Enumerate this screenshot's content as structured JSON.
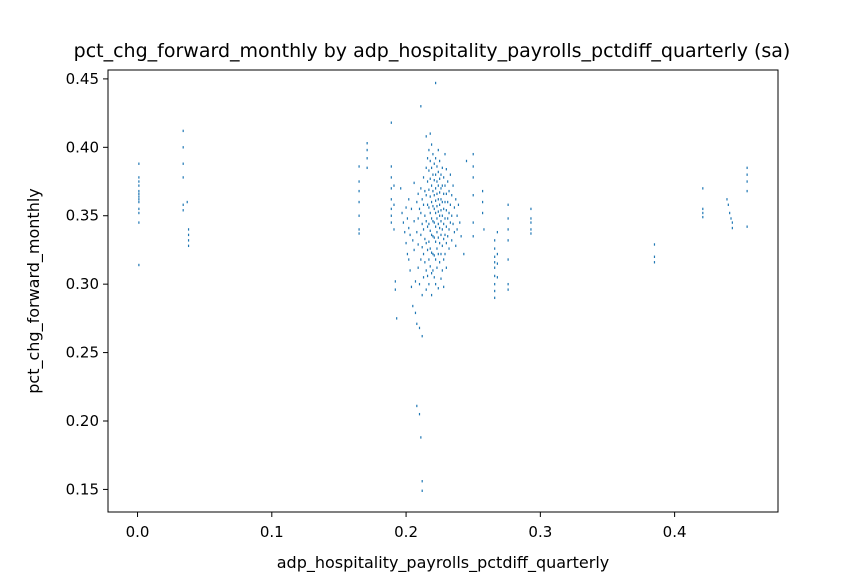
{
  "chart_data": {
    "type": "scatter",
    "title": "pct_chg_forward_monthly by adp_hospitality_payrolls_pctdiff_quarterly (sa)",
    "xlabel": "adp_hospitality_payrolls_pctdiff_quarterly",
    "ylabel": "pct_chg_forward_monthly",
    "xlim": [
      -0.022,
      0.477
    ],
    "ylim": [
      0.1335,
      0.4565
    ],
    "xticks": [
      0.0,
      0.1,
      0.2,
      0.3,
      0.4
    ],
    "xtick_labels": [
      "0.0",
      "0.1",
      "0.2",
      "0.3",
      "0.4"
    ],
    "yticks": [
      0.15,
      0.2,
      0.25,
      0.3,
      0.35,
      0.4,
      0.45
    ],
    "ytick_labels": [
      "0.15",
      "0.20",
      "0.25",
      "0.30",
      "0.35",
      "0.40",
      "0.45"
    ],
    "grid": false,
    "marker_color": "#1f77b4",
    "points": [
      [
        0.001,
        0.388
      ],
      [
        0.001,
        0.378
      ],
      [
        0.001,
        0.375
      ],
      [
        0.001,
        0.372
      ],
      [
        0.001,
        0.368
      ],
      [
        0.001,
        0.366
      ],
      [
        0.001,
        0.364
      ],
      [
        0.001,
        0.362
      ],
      [
        0.001,
        0.36
      ],
      [
        0.001,
        0.355
      ],
      [
        0.001,
        0.352
      ],
      [
        0.001,
        0.345
      ],
      [
        0.001,
        0.314
      ],
      [
        0.034,
        0.412
      ],
      [
        0.034,
        0.4
      ],
      [
        0.034,
        0.388
      ],
      [
        0.034,
        0.378
      ],
      [
        0.034,
        0.358
      ],
      [
        0.034,
        0.354
      ],
      [
        0.037,
        0.36
      ],
      [
        0.038,
        0.34
      ],
      [
        0.038,
        0.336
      ],
      [
        0.038,
        0.332
      ],
      [
        0.038,
        0.328
      ],
      [
        0.165,
        0.386
      ],
      [
        0.165,
        0.375
      ],
      [
        0.165,
        0.368
      ],
      [
        0.165,
        0.36
      ],
      [
        0.165,
        0.35
      ],
      [
        0.165,
        0.34
      ],
      [
        0.165,
        0.337
      ],
      [
        0.171,
        0.403
      ],
      [
        0.171,
        0.398
      ],
      [
        0.171,
        0.392
      ],
      [
        0.171,
        0.385
      ],
      [
        0.189,
        0.418
      ],
      [
        0.189,
        0.386
      ],
      [
        0.189,
        0.378
      ],
      [
        0.189,
        0.37
      ],
      [
        0.189,
        0.362
      ],
      [
        0.189,
        0.355
      ],
      [
        0.189,
        0.35
      ],
      [
        0.189,
        0.345
      ],
      [
        0.191,
        0.372
      ],
      [
        0.191,
        0.358
      ],
      [
        0.191,
        0.34
      ],
      [
        0.192,
        0.302
      ],
      [
        0.192,
        0.296
      ],
      [
        0.193,
        0.275
      ],
      [
        0.196,
        0.37
      ],
      [
        0.197,
        0.352
      ],
      [
        0.198,
        0.345
      ],
      [
        0.199,
        0.338
      ],
      [
        0.2,
        0.356
      ],
      [
        0.2,
        0.33
      ],
      [
        0.201,
        0.348
      ],
      [
        0.201,
        0.322
      ],
      [
        0.202,
        0.362
      ],
      [
        0.202,
        0.341
      ],
      [
        0.202,
        0.318
      ],
      [
        0.203,
        0.336
      ],
      [
        0.203,
        0.31
      ],
      [
        0.204,
        0.355
      ],
      [
        0.204,
        0.298
      ],
      [
        0.205,
        0.332
      ],
      [
        0.205,
        0.284
      ],
      [
        0.206,
        0.374
      ],
      [
        0.206,
        0.346
      ],
      [
        0.206,
        0.325
      ],
      [
        0.207,
        0.302
      ],
      [
        0.207,
        0.279
      ],
      [
        0.208,
        0.36
      ],
      [
        0.208,
        0.338
      ],
      [
        0.208,
        0.271
      ],
      [
        0.208,
        0.211
      ],
      [
        0.209,
        0.366
      ],
      [
        0.209,
        0.348
      ],
      [
        0.209,
        0.329
      ],
      [
        0.209,
        0.312
      ],
      [
        0.21,
        0.355
      ],
      [
        0.21,
        0.3
      ],
      [
        0.21,
        0.268
      ],
      [
        0.21,
        0.205
      ],
      [
        0.211,
        0.43
      ],
      [
        0.211,
        0.37
      ],
      [
        0.211,
        0.352
      ],
      [
        0.211,
        0.336
      ],
      [
        0.211,
        0.318
      ],
      [
        0.211,
        0.188
      ],
      [
        0.212,
        0.362
      ],
      [
        0.212,
        0.344
      ],
      [
        0.212,
        0.327
      ],
      [
        0.212,
        0.292
      ],
      [
        0.212,
        0.262
      ],
      [
        0.212,
        0.156
      ],
      [
        0.212,
        0.149
      ],
      [
        0.213,
        0.378
      ],
      [
        0.213,
        0.358
      ],
      [
        0.213,
        0.34
      ],
      [
        0.213,
        0.322
      ],
      [
        0.213,
        0.305
      ],
      [
        0.214,
        0.368
      ],
      [
        0.214,
        0.35
      ],
      [
        0.214,
        0.333
      ],
      [
        0.214,
        0.316
      ],
      [
        0.215,
        0.408
      ],
      [
        0.215,
        0.385
      ],
      [
        0.215,
        0.365
      ],
      [
        0.215,
        0.346
      ],
      [
        0.215,
        0.33
      ],
      [
        0.215,
        0.31
      ],
      [
        0.215,
        0.296
      ],
      [
        0.216,
        0.392
      ],
      [
        0.216,
        0.375
      ],
      [
        0.216,
        0.358
      ],
      [
        0.216,
        0.342
      ],
      [
        0.216,
        0.325
      ],
      [
        0.216,
        0.306
      ],
      [
        0.217,
        0.398
      ],
      [
        0.217,
        0.383
      ],
      [
        0.217,
        0.369
      ],
      [
        0.217,
        0.356
      ],
      [
        0.217,
        0.344
      ],
      [
        0.217,
        0.331
      ],
      [
        0.217,
        0.318
      ],
      [
        0.217,
        0.3
      ],
      [
        0.218,
        0.41
      ],
      [
        0.218,
        0.39
      ],
      [
        0.218,
        0.377
      ],
      [
        0.218,
        0.364
      ],
      [
        0.218,
        0.352
      ],
      [
        0.218,
        0.339
      ],
      [
        0.218,
        0.326
      ],
      [
        0.218,
        0.313
      ],
      [
        0.219,
        0.402
      ],
      [
        0.219,
        0.385
      ],
      [
        0.219,
        0.372
      ],
      [
        0.219,
        0.36
      ],
      [
        0.219,
        0.348
      ],
      [
        0.219,
        0.336
      ],
      [
        0.219,
        0.323
      ],
      [
        0.219,
        0.308
      ],
      [
        0.219,
        0.292
      ],
      [
        0.22,
        0.395
      ],
      [
        0.22,
        0.38
      ],
      [
        0.22,
        0.368
      ],
      [
        0.22,
        0.357
      ],
      [
        0.22,
        0.346
      ],
      [
        0.22,
        0.335
      ],
      [
        0.22,
        0.322
      ],
      [
        0.22,
        0.31
      ],
      [
        0.221,
        0.388
      ],
      [
        0.221,
        0.376
      ],
      [
        0.221,
        0.365
      ],
      [
        0.221,
        0.355
      ],
      [
        0.221,
        0.345
      ],
      [
        0.221,
        0.334
      ],
      [
        0.221,
        0.321
      ],
      [
        0.221,
        0.305
      ],
      [
        0.222,
        0.447
      ],
      [
        0.222,
        0.392
      ],
      [
        0.222,
        0.38
      ],
      [
        0.222,
        0.37
      ],
      [
        0.222,
        0.361
      ],
      [
        0.222,
        0.352
      ],
      [
        0.222,
        0.342
      ],
      [
        0.222,
        0.331
      ],
      [
        0.222,
        0.318
      ],
      [
        0.222,
        0.3
      ],
      [
        0.223,
        0.386
      ],
      [
        0.223,
        0.375
      ],
      [
        0.223,
        0.366
      ],
      [
        0.223,
        0.357
      ],
      [
        0.223,
        0.348
      ],
      [
        0.223,
        0.338
      ],
      [
        0.223,
        0.326
      ],
      [
        0.223,
        0.312
      ],
      [
        0.224,
        0.398
      ],
      [
        0.224,
        0.382
      ],
      [
        0.224,
        0.372
      ],
      [
        0.224,
        0.362
      ],
      [
        0.224,
        0.353
      ],
      [
        0.224,
        0.344
      ],
      [
        0.224,
        0.334
      ],
      [
        0.224,
        0.322
      ],
      [
        0.224,
        0.297
      ],
      [
        0.225,
        0.39
      ],
      [
        0.225,
        0.377
      ],
      [
        0.225,
        0.367
      ],
      [
        0.225,
        0.358
      ],
      [
        0.225,
        0.35
      ],
      [
        0.225,
        0.341
      ],
      [
        0.225,
        0.33
      ],
      [
        0.225,
        0.316
      ],
      [
        0.226,
        0.38
      ],
      [
        0.226,
        0.37
      ],
      [
        0.226,
        0.362
      ],
      [
        0.226,
        0.354
      ],
      [
        0.226,
        0.346
      ],
      [
        0.226,
        0.336
      ],
      [
        0.226,
        0.322
      ],
      [
        0.226,
        0.304
      ],
      [
        0.227,
        0.385
      ],
      [
        0.227,
        0.372
      ],
      [
        0.227,
        0.36
      ],
      [
        0.227,
        0.35
      ],
      [
        0.227,
        0.34
      ],
      [
        0.227,
        0.328
      ],
      [
        0.227,
        0.31
      ],
      [
        0.228,
        0.378
      ],
      [
        0.228,
        0.366
      ],
      [
        0.228,
        0.355
      ],
      [
        0.228,
        0.344
      ],
      [
        0.228,
        0.333
      ],
      [
        0.228,
        0.318
      ],
      [
        0.228,
        0.298
      ],
      [
        0.229,
        0.395
      ],
      [
        0.229,
        0.372
      ],
      [
        0.229,
        0.36
      ],
      [
        0.229,
        0.348
      ],
      [
        0.229,
        0.336
      ],
      [
        0.229,
        0.322
      ],
      [
        0.23,
        0.384
      ],
      [
        0.23,
        0.366
      ],
      [
        0.23,
        0.354
      ],
      [
        0.23,
        0.342
      ],
      [
        0.23,
        0.33
      ],
      [
        0.23,
        0.312
      ],
      [
        0.231,
        0.375
      ],
      [
        0.231,
        0.36
      ],
      [
        0.231,
        0.348
      ],
      [
        0.231,
        0.335
      ],
      [
        0.232,
        0.368
      ],
      [
        0.232,
        0.352
      ],
      [
        0.232,
        0.34
      ],
      [
        0.232,
        0.326
      ],
      [
        0.233,
        0.38
      ],
      [
        0.233,
        0.358
      ],
      [
        0.233,
        0.345
      ],
      [
        0.234,
        0.365
      ],
      [
        0.234,
        0.35
      ],
      [
        0.234,
        0.332
      ],
      [
        0.235,
        0.372
      ],
      [
        0.235,
        0.344
      ],
      [
        0.236,
        0.356
      ],
      [
        0.236,
        0.338
      ],
      [
        0.237,
        0.362
      ],
      [
        0.237,
        0.328
      ],
      [
        0.238,
        0.35
      ],
      [
        0.238,
        0.34
      ],
      [
        0.239,
        0.358
      ],
      [
        0.24,
        0.345
      ],
      [
        0.241,
        0.335
      ],
      [
        0.243,
        0.322
      ],
      [
        0.245,
        0.39
      ],
      [
        0.25,
        0.395
      ],
      [
        0.25,
        0.386
      ],
      [
        0.25,
        0.378
      ],
      [
        0.25,
        0.365
      ],
      [
        0.25,
        0.345
      ],
      [
        0.25,
        0.335
      ],
      [
        0.257,
        0.368
      ],
      [
        0.257,
        0.36
      ],
      [
        0.257,
        0.352
      ],
      [
        0.258,
        0.34
      ],
      [
        0.266,
        0.332
      ],
      [
        0.266,
        0.326
      ],
      [
        0.266,
        0.32
      ],
      [
        0.266,
        0.316
      ],
      [
        0.266,
        0.312
      ],
      [
        0.266,
        0.306
      ],
      [
        0.266,
        0.3
      ],
      [
        0.266,
        0.295
      ],
      [
        0.266,
        0.29
      ],
      [
        0.268,
        0.338
      ],
      [
        0.268,
        0.322
      ],
      [
        0.268,
        0.315
      ],
      [
        0.268,
        0.305
      ],
      [
        0.276,
        0.358
      ],
      [
        0.276,
        0.348
      ],
      [
        0.276,
        0.34
      ],
      [
        0.276,
        0.332
      ],
      [
        0.276,
        0.318
      ],
      [
        0.276,
        0.3
      ],
      [
        0.276,
        0.296
      ],
      [
        0.293,
        0.355
      ],
      [
        0.293,
        0.348
      ],
      [
        0.293,
        0.345
      ],
      [
        0.293,
        0.34
      ],
      [
        0.293,
        0.337
      ],
      [
        0.385,
        0.329
      ],
      [
        0.385,
        0.32
      ],
      [
        0.385,
        0.316
      ],
      [
        0.421,
        0.37
      ],
      [
        0.421,
        0.355
      ],
      [
        0.421,
        0.352
      ],
      [
        0.421,
        0.349
      ],
      [
        0.439,
        0.362
      ],
      [
        0.44,
        0.358
      ],
      [
        0.441,
        0.352
      ],
      [
        0.442,
        0.348
      ],
      [
        0.443,
        0.345
      ],
      [
        0.443,
        0.341
      ],
      [
        0.454,
        0.385
      ],
      [
        0.454,
        0.38
      ],
      [
        0.454,
        0.375
      ],
      [
        0.454,
        0.368
      ],
      [
        0.454,
        0.342
      ]
    ]
  }
}
